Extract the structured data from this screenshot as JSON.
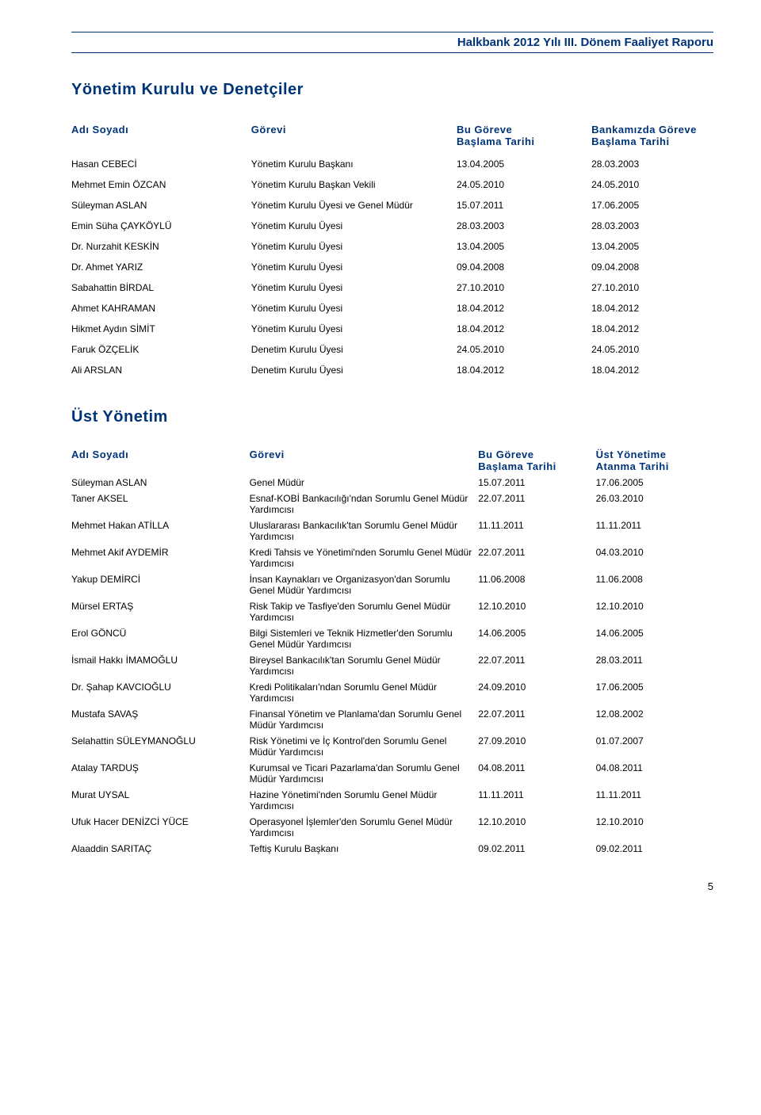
{
  "header": {
    "title": "Halkbank 2012 Yılı III. Dönem Faaliyet Raporu"
  },
  "section1": {
    "title": "Yönetim Kurulu ve Denetçiler",
    "columns": {
      "c1": "Adı Soyadı",
      "c2": "Görevi",
      "c3_line1": "Bu Göreve",
      "c3_line2": "Başlama Tarihi",
      "c4_line1": "Bankamızda Göreve",
      "c4_line2": "Başlama Tarihi"
    },
    "rows": [
      {
        "name": "Hasan CEBECİ",
        "role": "Yönetim Kurulu Başkanı",
        "d1": "13.04.2005",
        "d2": "28.03.2003"
      },
      {
        "name": "Mehmet Emin ÖZCAN",
        "role": "Yönetim Kurulu Başkan Vekili",
        "d1": "24.05.2010",
        "d2": "24.05.2010"
      },
      {
        "name": "Süleyman ASLAN",
        "role": "Yönetim Kurulu Üyesi ve Genel Müdür",
        "d1": "15.07.2011",
        "d2": "17.06.2005"
      },
      {
        "name": "Emin Süha ÇAYKÖYLÜ",
        "role": "Yönetim Kurulu Üyesi",
        "d1": "28.03.2003",
        "d2": "28.03.2003"
      },
      {
        "name": "Dr. Nurzahit KESKİN",
        "role": "Yönetim Kurulu Üyesi",
        "d1": "13.04.2005",
        "d2": "13.04.2005"
      },
      {
        "name": "Dr. Ahmet YARIZ",
        "role": "Yönetim Kurulu Üyesi",
        "d1": "09.04.2008",
        "d2": "09.04.2008"
      },
      {
        "name": "Sabahattin BİRDAL",
        "role": "Yönetim Kurulu Üyesi",
        "d1": "27.10.2010",
        "d2": "27.10.2010"
      },
      {
        "name": "Ahmet KAHRAMAN",
        "role": "Yönetim Kurulu Üyesi",
        "d1": "18.04.2012",
        "d2": "18.04.2012"
      },
      {
        "name": "Hikmet Aydın SİMİT",
        "role": "Yönetim Kurulu Üyesi",
        "d1": "18.04.2012",
        "d2": "18.04.2012"
      },
      {
        "name": "Faruk ÖZÇELİK",
        "role": "Denetim Kurulu Üyesi",
        "d1": "24.05.2010",
        "d2": "24.05.2010"
      },
      {
        "name": "Ali ARSLAN",
        "role": "Denetim Kurulu Üyesi",
        "d1": "18.04.2012",
        "d2": "18.04.2012"
      }
    ]
  },
  "section2": {
    "title": "Üst Yönetim",
    "columns": {
      "c1": "Adı Soyadı",
      "c2": "Görevi",
      "c3_line1": "Bu Göreve",
      "c3_line2": "Başlama Tarihi",
      "c4_line1": "Üst Yönetime",
      "c4_line2": "Atanma Tarihi"
    },
    "rows": [
      {
        "name": "Süleyman ASLAN",
        "role": "Genel Müdür",
        "d1": "15.07.2011",
        "d2": "17.06.2005"
      },
      {
        "name": "Taner AKSEL",
        "role": "Esnaf-KOBİ Bankacılığı'ndan Sorumlu Genel Müdür Yardımcısı",
        "d1": "22.07.2011",
        "d2": "26.03.2010"
      },
      {
        "name": "Mehmet Hakan ATİLLA",
        "role": "Uluslararası Bankacılık'tan Sorumlu Genel Müdür Yardımcısı",
        "d1": "11.11.2011",
        "d2": "11.11.2011"
      },
      {
        "name": "Mehmet Akif AYDEMİR",
        "role": "Kredi Tahsis ve Yönetimi'nden Sorumlu Genel Müdür Yardımcısı",
        "d1": "22.07.2011",
        "d2": "04.03.2010"
      },
      {
        "name": "Yakup DEMİRCİ",
        "role": "İnsan Kaynakları ve Organizasyon'dan Sorumlu Genel Müdür Yardımcısı",
        "d1": "11.06.2008",
        "d2": "11.06.2008"
      },
      {
        "name": "Mürsel ERTAŞ",
        "role": "Risk Takip ve Tasfiye'den Sorumlu Genel Müdür Yardımcısı",
        "d1": "12.10.2010",
        "d2": "12.10.2010"
      },
      {
        "name": "Erol GÖNCÜ",
        "role": "Bilgi Sistemleri ve Teknik Hizmetler'den Sorumlu Genel Müdür Yardımcısı",
        "d1": "14.06.2005",
        "d2": "14.06.2005"
      },
      {
        "name": "İsmail Hakkı İMAMOĞLU",
        "role": "Bireysel Bankacılık'tan Sorumlu Genel Müdür Yardımcısı",
        "d1": "22.07.2011",
        "d2": "28.03.2011"
      },
      {
        "name": "Dr. Şahap KAVCIOĞLU",
        "role": "Kredi Politikaları'ndan Sorumlu Genel Müdür Yardımcısı",
        "d1": "24.09.2010",
        "d2": "17.06.2005"
      },
      {
        "name": "Mustafa SAVAŞ",
        "role": "Finansal Yönetim ve Planlama'dan Sorumlu Genel Müdür Yardımcısı",
        "d1": "22.07.2011",
        "d2": "12.08.2002"
      },
      {
        "name": "Selahattin SÜLEYMANOĞLU",
        "role": "Risk Yönetimi ve İç Kontrol'den Sorumlu Genel Müdür Yardımcısı",
        "d1": "27.09.2010",
        "d2": "01.07.2007"
      },
      {
        "name": "Atalay TARDUŞ",
        "role": "Kurumsal ve Ticari Pazarlama'dan Sorumlu Genel Müdür Yardımcısı",
        "d1": "04.08.2011",
        "d2": "04.08.2011"
      },
      {
        "name": "Murat UYSAL",
        "role": "Hazine Yönetimi'nden Sorumlu Genel Müdür Yardımcısı",
        "d1": "11.11.2011",
        "d2": "11.11.2011"
      },
      {
        "name": "Ufuk Hacer DENİZCİ YÜCE",
        "role": "Operasyonel İşlemler'den Sorumlu Genel Müdür Yardımcısı",
        "d1": "12.10.2010",
        "d2": "12.10.2010"
      },
      {
        "name": "Alaaddin SARITAÇ",
        "role": "Teftiş Kurulu Başkanı",
        "d1": "09.02.2011",
        "d2": "09.02.2011"
      }
    ]
  },
  "page_number": "5"
}
